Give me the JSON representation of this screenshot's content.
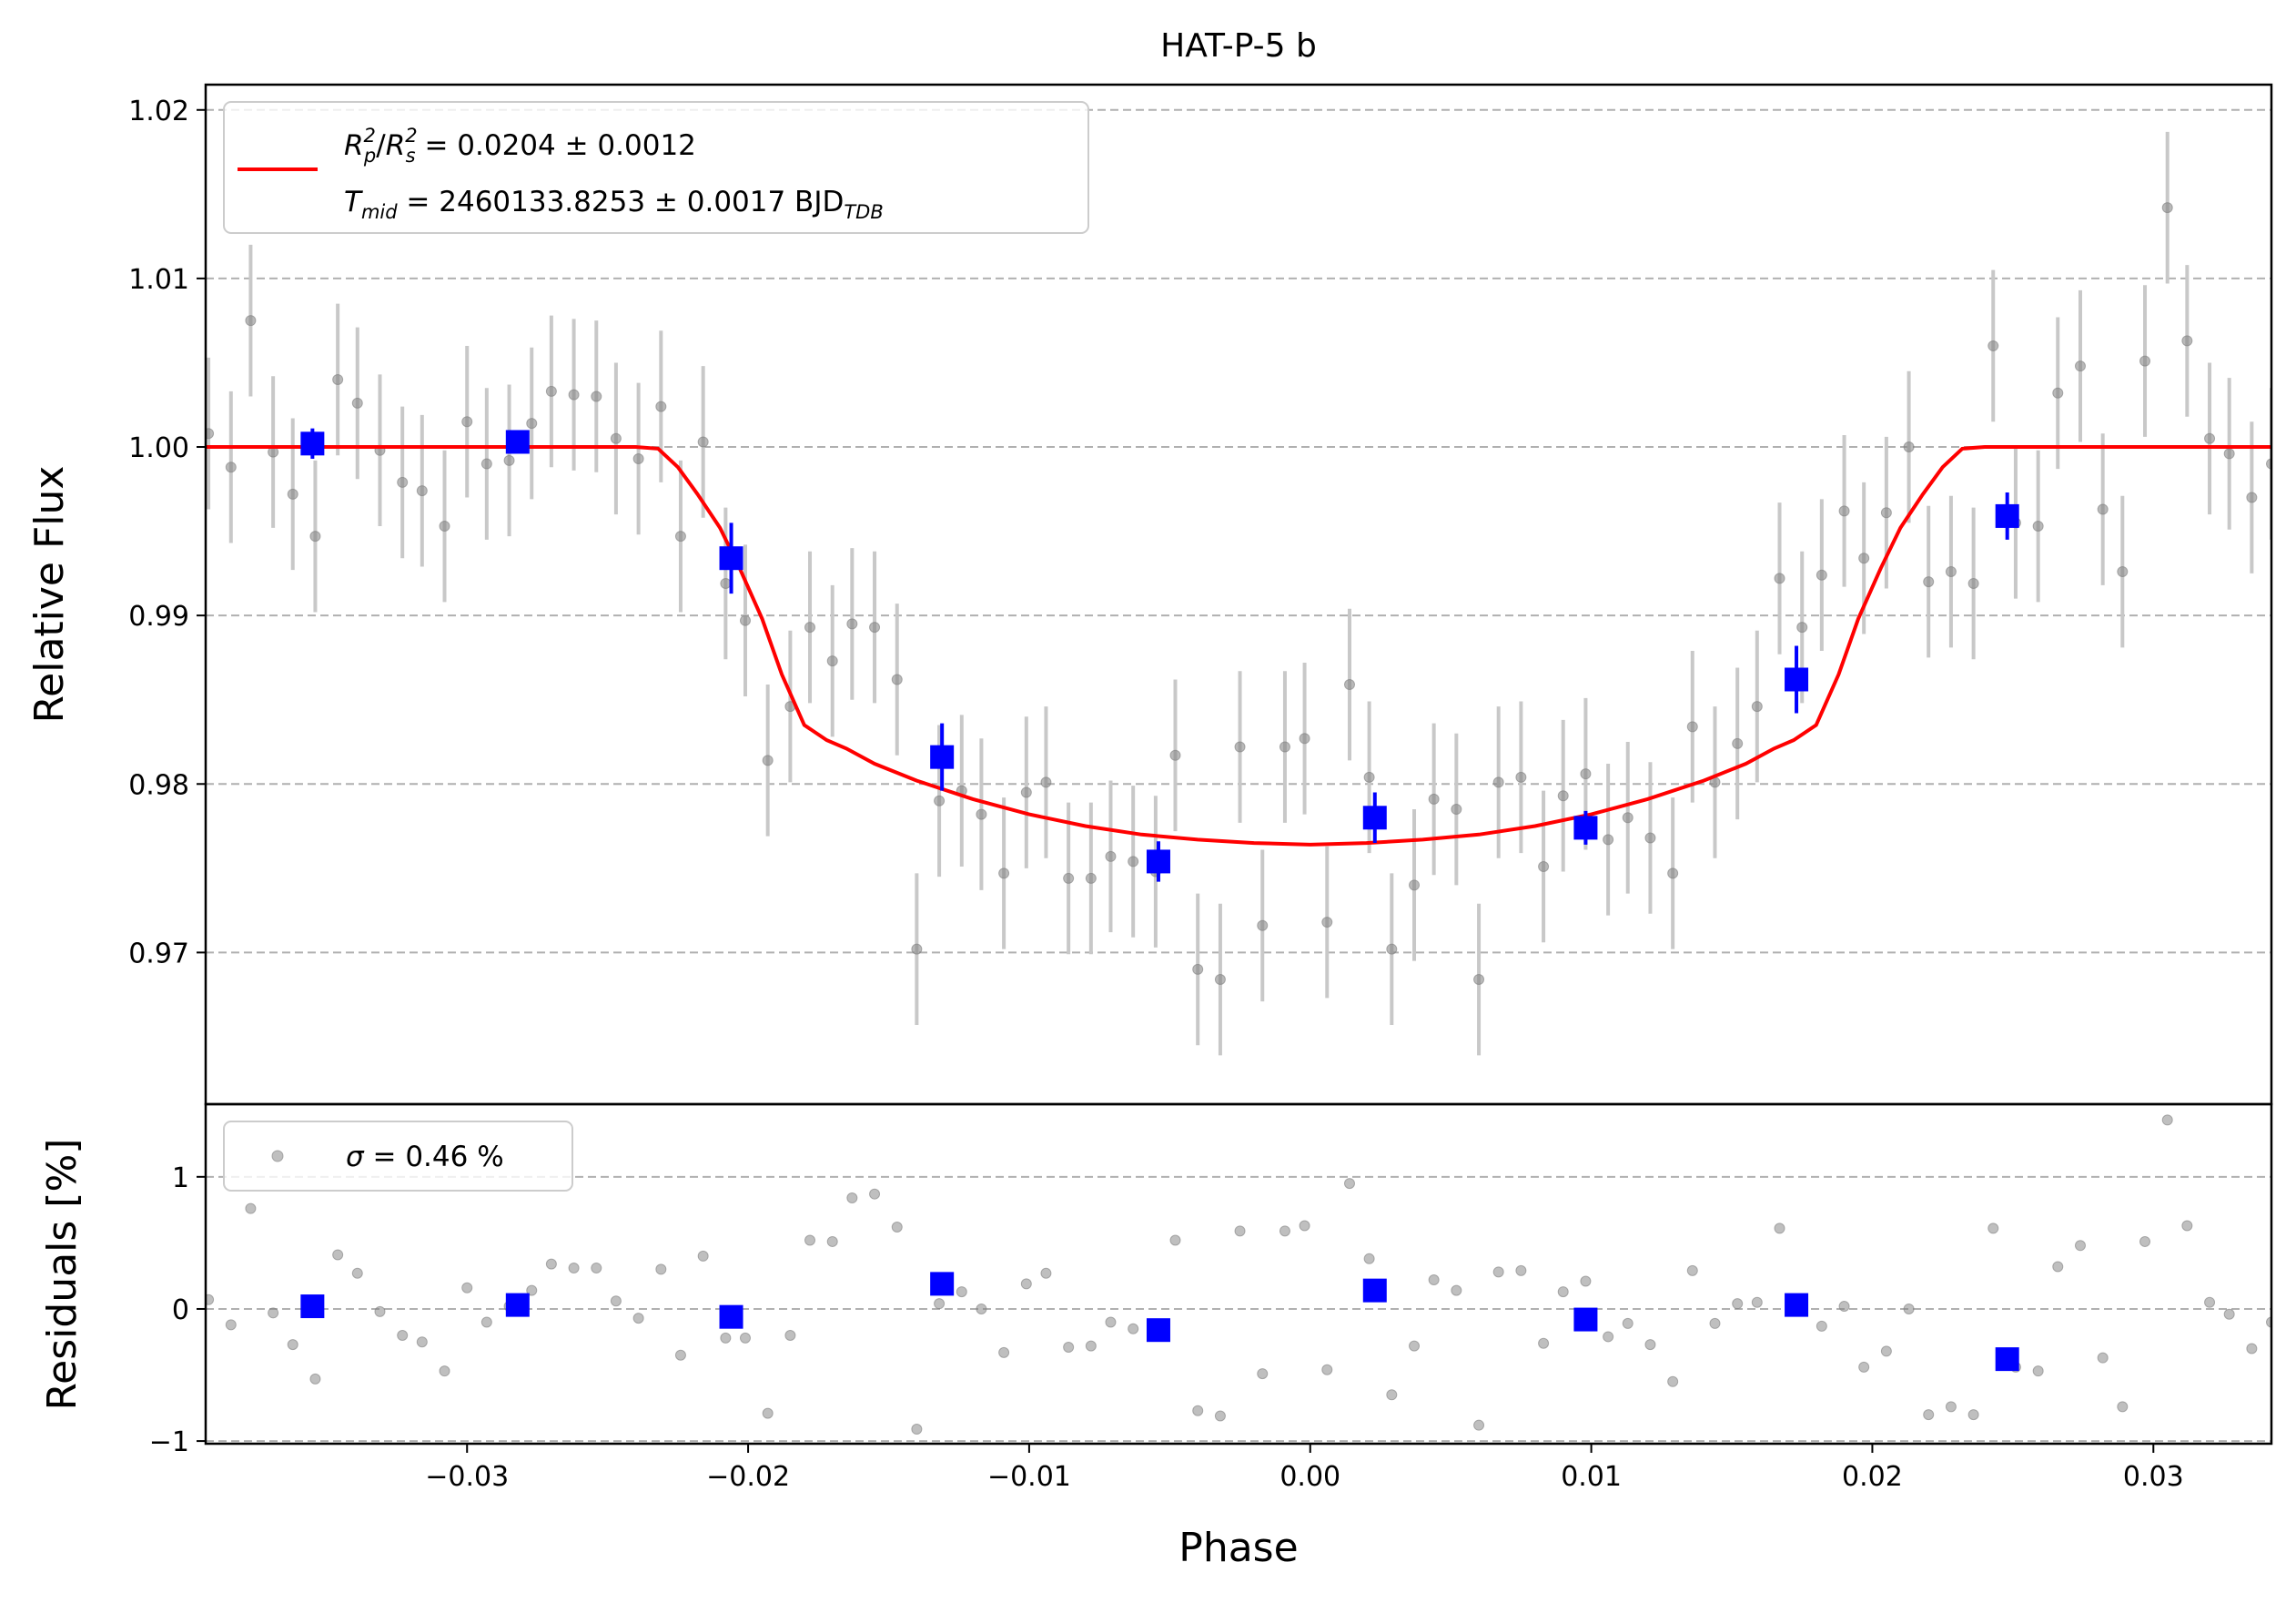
{
  "chart_data": [
    {
      "type": "scatter",
      "panel": "top",
      "title": "HAT-P-5 b",
      "xlabel": "",
      "ylabel": "Relative Flux",
      "xlim": [
        -0.0393,
        0.0342
      ],
      "ylim": [
        0.961,
        1.0215
      ],
      "grid": "horizontal dashed",
      "legend_placement": "top-left",
      "yticks": [
        "0.97",
        "0.98",
        "0.99",
        "1.00",
        "1.01",
        "1.02"
      ],
      "ytick_values": [
        0.97,
        0.98,
        0.99,
        1.0,
        1.01,
        1.02
      ],
      "legend": {
        "rp": {
          "base": "R",
          "sub": "p",
          "sup": "2"
        },
        "rs": {
          "base": "R",
          "sub": "s",
          "sup": "2"
        },
        "rp_value": " = 0.0204 ± 0.0012",
        "tmid_base": "T",
        "tmid_sub": "mid",
        "tmid_value": " = 2460133.8253 ± 0.0017 BJD",
        "bjd_sub": "TDB"
      },
      "colors": {
        "data": "#808080",
        "errorbar": "#c8c8c8",
        "binned": "#0000ff",
        "model": "#ff0000"
      },
      "series": [
        {
          "kind": "data",
          "err": 0.0045,
          "x": [
            -0.0392,
            -0.0384,
            -0.0377,
            -0.0369,
            -0.0362,
            -0.0354,
            -0.0346,
            -0.0339,
            -0.0331,
            -0.0323,
            -0.0316,
            -0.0308,
            -0.03,
            -0.0293,
            -0.0285,
            -0.0277,
            -0.027,
            -0.0262,
            -0.0254,
            -0.0247,
            -0.0239,
            -0.0231,
            -0.0224,
            -0.0216,
            -0.0208,
            -0.0201,
            -0.0193,
            -0.0185,
            -0.0178,
            -0.017,
            -0.0163,
            -0.0155,
            -0.0147,
            -0.014,
            -0.0132,
            -0.0124,
            -0.0117,
            -0.0109,
            -0.0101,
            -0.0094,
            -0.0086,
            -0.0078,
            -0.0071,
            -0.0063,
            -0.0055,
            -0.0048,
            -0.004,
            -0.0032,
            -0.0025,
            -0.0017,
            -0.0009,
            -0.0002,
            0.0006,
            0.0014,
            0.0021,
            0.0029,
            0.0037,
            0.0044,
            0.0052,
            0.006,
            0.0067,
            0.0075,
            0.0083,
            0.009,
            0.0098,
            0.0106,
            0.0113,
            0.0121,
            0.0129,
            0.0136,
            0.0144,
            0.0152,
            0.0159,
            0.0167,
            0.0175,
            0.0182,
            0.019,
            0.0197,
            0.0205,
            0.0213,
            0.022,
            0.0228,
            0.0236,
            0.0243,
            0.0251,
            0.0259,
            0.0266,
            0.0274,
            0.0282,
            0.0289,
            0.0297,
            0.0305,
            0.0312,
            0.032,
            0.0327,
            0.0335,
            0.0342
          ],
          "y": [
            1.0008,
            0.9988,
            1.0075,
            0.9997,
            0.9972,
            0.9947,
            1.004,
            1.0026,
            0.9998,
            0.9979,
            0.9974,
            0.9953,
            1.0015,
            0.999,
            0.9992,
            1.0014,
            1.0033,
            1.0031,
            1.003,
            1.0005,
            0.9993,
            1.0024,
            0.9947,
            1.0003,
            0.9919,
            0.9897,
            0.9814,
            0.9846,
            0.9893,
            0.9873,
            0.9895,
            0.9893,
            0.9862,
            0.9702,
            0.979,
            0.9796,
            0.9782,
            0.9747,
            0.9795,
            0.9801,
            0.9744,
            0.9744,
            0.9757,
            0.9754,
            0.9748,
            0.9817,
            0.969,
            0.9684,
            0.9822,
            0.9716,
            0.9822,
            0.9827,
            0.9718,
            0.9859,
            0.9804,
            0.9702,
            0.974,
            0.9791,
            0.9785,
            0.9684,
            0.9801,
            0.9804,
            0.9751,
            0.9793,
            0.9806,
            0.9767,
            0.978,
            0.9768,
            0.9747,
            0.9834,
            0.9801,
            0.9824,
            0.9846,
            0.9922,
            0.9893,
            0.9924,
            0.9962,
            0.9934,
            0.9961,
            1.0,
            0.992,
            0.9926,
            0.9919,
            1.006,
            0.9955,
            0.9953,
            1.0032,
            1.0048,
            0.9963,
            0.9926,
            1.0051,
            1.0142,
            1.0063,
            1.0005,
            0.9996,
            0.997,
            0.999
          ]
        },
        {
          "kind": "binned",
          "x": [
            -0.0355,
            -0.0282,
            -0.0206,
            -0.0131,
            -0.0054,
            0.0023,
            0.0098,
            0.0173,
            0.0248
          ],
          "y": [
            1.0002,
            1.0003,
            0.9934,
            0.9816,
            0.9754,
            0.978,
            0.9774,
            0.9862,
            0.9959
          ],
          "err": [
            0.0009,
            0.0005,
            0.0021,
            0.002,
            0.0012,
            0.0015,
            0.001,
            0.002,
            0.0014
          ]
        },
        {
          "kind": "model",
          "x": [
            -0.0393,
            -0.024,
            -0.0232,
            -0.0225,
            -0.0218,
            -0.021,
            -0.0203,
            -0.0195,
            -0.0188,
            -0.018,
            -0.0172,
            -0.0165,
            -0.0155,
            -0.014,
            -0.012,
            -0.01,
            -0.008,
            -0.006,
            -0.004,
            -0.002,
            0.0,
            0.002,
            0.004,
            0.006,
            0.008,
            0.01,
            0.012,
            0.014,
            0.0155,
            0.0165,
            0.0172,
            0.018,
            0.0188,
            0.0195,
            0.0203,
            0.021,
            0.0218,
            0.0225,
            0.0232,
            0.024,
            0.0342
          ],
          "y": [
            1.0,
            1.0,
            0.9999,
            0.9988,
            0.9972,
            0.9952,
            0.9928,
            0.9898,
            0.9865,
            0.9835,
            0.9826,
            0.9821,
            0.9812,
            0.9802,
            0.9791,
            0.9782,
            0.9775,
            0.977,
            0.9767,
            0.9765,
            0.9764,
            0.9765,
            0.9767,
            0.977,
            0.9775,
            0.9782,
            0.9791,
            0.9802,
            0.9812,
            0.9821,
            0.9826,
            0.9835,
            0.9865,
            0.9898,
            0.9928,
            0.9952,
            0.9972,
            0.9988,
            0.9999,
            1.0,
            1.0
          ]
        }
      ]
    },
    {
      "type": "scatter",
      "panel": "bottom",
      "xlabel": "Phase",
      "ylabel": "Residuals [%]",
      "xlim": [
        -0.0393,
        0.0342
      ],
      "ylim": [
        -1.02,
        1.55
      ],
      "grid": "horizontal dashed",
      "legend_placement": "top-left",
      "xticks": [
        "−0.03",
        "−0.02",
        "−0.01",
        "0.00",
        "0.01",
        "0.02",
        "0.03"
      ],
      "xtick_values": [
        -0.03,
        -0.02,
        -0.01,
        0.0,
        0.01,
        0.02,
        0.03
      ],
      "yticks": [
        "−1",
        "0",
        "1"
      ],
      "ytick_values": [
        -1,
        0,
        1
      ],
      "legend": {
        "sigma_symbol": "σ",
        "sigma_value": " = 0.46 %"
      },
      "colors": {
        "data": "#808080",
        "binned": "#0000ff"
      },
      "series": [
        {
          "kind": "data",
          "x": [
            -0.0392,
            -0.0384,
            -0.0377,
            -0.0369,
            -0.0362,
            -0.0354,
            -0.0346,
            -0.0339,
            -0.0331,
            -0.0323,
            -0.0316,
            -0.0308,
            -0.03,
            -0.0293,
            -0.0285,
            -0.0277,
            -0.027,
            -0.0262,
            -0.0254,
            -0.0247,
            -0.0239,
            -0.0231,
            -0.0224,
            -0.0216,
            -0.0208,
            -0.0201,
            -0.0193,
            -0.0185,
            -0.0178,
            -0.017,
            -0.0163,
            -0.0155,
            -0.0147,
            -0.014,
            -0.0132,
            -0.0124,
            -0.0117,
            -0.0109,
            -0.0101,
            -0.0094,
            -0.0086,
            -0.0078,
            -0.0071,
            -0.0063,
            -0.0055,
            -0.0048,
            -0.004,
            -0.0032,
            -0.0025,
            -0.0017,
            -0.0009,
            -0.0002,
            0.0006,
            0.0014,
            0.0021,
            0.0029,
            0.0037,
            0.0044,
            0.0052,
            0.006,
            0.0067,
            0.0075,
            0.0083,
            0.009,
            0.0098,
            0.0106,
            0.0113,
            0.0121,
            0.0129,
            0.0136,
            0.0144,
            0.0152,
            0.0159,
            0.0167,
            0.0175,
            0.0182,
            0.019,
            0.0197,
            0.0205,
            0.0213,
            0.022,
            0.0228,
            0.0236,
            0.0243,
            0.0251,
            0.0259,
            0.0266,
            0.0274,
            0.0282,
            0.0289,
            0.0297,
            0.0305,
            0.0312,
            0.032,
            0.0327,
            0.0335,
            0.0342
          ],
          "y": [
            0.07,
            -0.12,
            0.76,
            -0.03,
            -0.27,
            -0.53,
            0.41,
            0.27,
            -0.02,
            -0.2,
            -0.25,
            -0.47,
            0.16,
            -0.1,
            0.02,
            0.14,
            0.34,
            0.31,
            0.31,
            0.06,
            -0.07,
            0.3,
            -0.35,
            0.4,
            -0.22,
            -0.22,
            -0.79,
            -0.2,
            0.52,
            0.51,
            0.84,
            0.87,
            0.62,
            -0.91,
            0.04,
            0.13,
            0.0,
            -0.33,
            0.19,
            0.27,
            -0.29,
            -0.28,
            -0.1,
            -0.15,
            -0.2,
            0.52,
            -0.77,
            -0.81,
            0.59,
            -0.49,
            0.59,
            0.63,
            -0.46,
            0.95,
            0.38,
            -0.65,
            -0.28,
            0.22,
            0.14,
            -0.88,
            0.28,
            0.29,
            -0.26,
            0.13,
            0.21,
            -0.21,
            -0.11,
            -0.27,
            -0.55,
            0.29,
            -0.11,
            0.04,
            0.05,
            0.61,
            0.06,
            -0.13,
            0.02,
            -0.44,
            -0.32,
            0.0,
            -0.8,
            -0.74,
            -0.8,
            0.61,
            -0.44,
            -0.47,
            0.32,
            0.48,
            -0.37,
            -0.74,
            0.51,
            1.43,
            0.63,
            0.05,
            -0.04,
            -0.3,
            -0.1
          ]
        },
        {
          "kind": "binned",
          "x": [
            -0.0355,
            -0.0282,
            -0.0206,
            -0.0131,
            -0.0054,
            0.0023,
            0.0098,
            0.0173,
            0.0248
          ],
          "y": [
            0.02,
            0.03,
            -0.06,
            0.19,
            -0.16,
            0.14,
            -0.08,
            0.03,
            -0.38
          ]
        }
      ]
    }
  ]
}
